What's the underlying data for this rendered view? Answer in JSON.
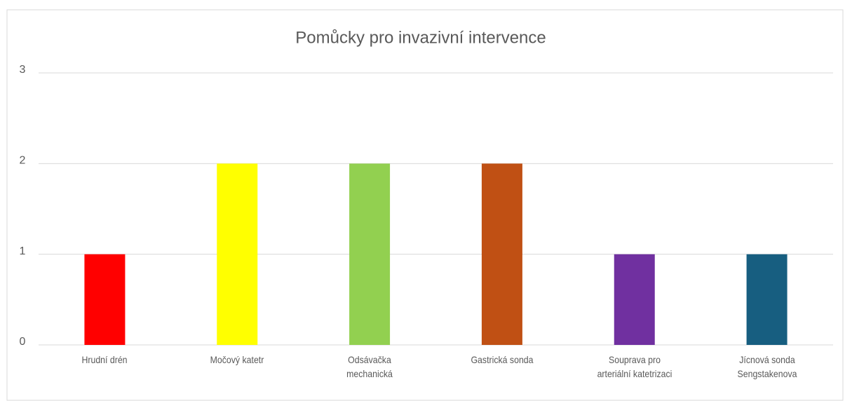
{
  "chart_data": {
    "type": "bar",
    "title": "Pomůcky pro invazivní intervence",
    "categories": [
      "Hrudní drén",
      "Močový katetr",
      "Odsávačka\nmechanická",
      "Gastrická sonda",
      "Souprava pro\narteriální katetrizaci",
      "Jícnová sonda\nSengstakenova"
    ],
    "values": [
      1,
      2,
      2,
      2,
      1,
      1
    ],
    "colors": [
      "#ff0000",
      "#ffff00",
      "#92d050",
      "#c05014",
      "#7030a0",
      "#175e80"
    ],
    "ylim": [
      0,
      3
    ],
    "yticks": [
      0,
      1,
      2,
      3
    ],
    "grid": true
  }
}
